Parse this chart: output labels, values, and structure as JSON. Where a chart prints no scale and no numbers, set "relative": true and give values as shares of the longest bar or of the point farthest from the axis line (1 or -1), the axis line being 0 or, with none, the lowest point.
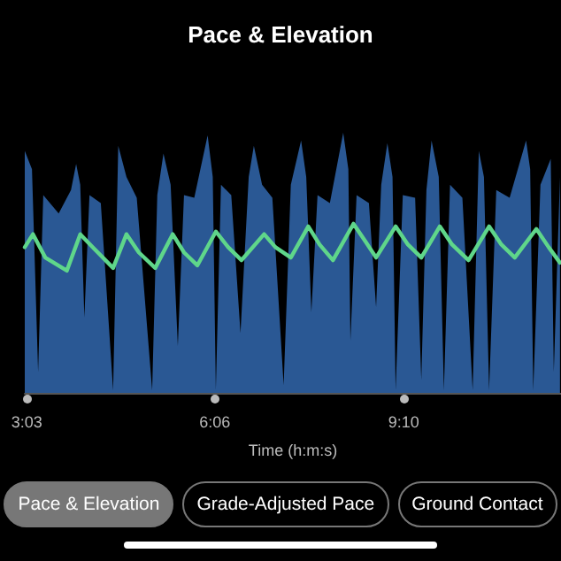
{
  "chart_data": {
    "type": "area",
    "title": "Pace & Elevation",
    "xlabel": "Time (h:m:s)",
    "relative": true,
    "grid": false,
    "xlim": [
      181,
      703
    ],
    "xticks": [
      {
        "value": 183,
        "label": "3:03"
      },
      {
        "value": 366,
        "label": "6:06"
      },
      {
        "value": 550,
        "label": "9:10"
      }
    ],
    "series": [
      {
        "color": "#2a5894",
        "x": [
          181,
          188,
          194,
          199,
          214,
          226,
          231,
          235,
          239,
          244,
          255,
          267,
          272,
          280,
          290,
          305,
          310,
          316,
          323,
          330,
          336,
          346,
          359,
          364,
          367,
          372,
          382,
          391,
          399,
          404,
          412,
          422,
          433,
          440,
          450,
          455,
          460,
          466,
          478,
          491,
          496,
          498,
          504,
          516,
          523,
          528,
          534,
          539,
          542,
          549,
          561,
          567,
          572,
          577,
          584,
          589,
          595,
          607,
          617,
          623,
          628,
          633,
          640,
          653,
          669,
          673,
          676,
          683,
          693,
          696,
          702
        ],
        "values": [
          0.93,
          0.86,
          0.08,
          0.76,
          0.69,
          0.78,
          0.88,
          0.8,
          0.29,
          0.76,
          0.73,
          0.01,
          0.95,
          0.83,
          0.75,
          0.01,
          0.76,
          0.92,
          0.8,
          0.18,
          0.76,
          0.75,
          0.99,
          0.83,
          0.01,
          0.8,
          0.76,
          0.23,
          0.83,
          0.95,
          0.8,
          0.75,
          0.03,
          0.8,
          0.97,
          0.83,
          0.31,
          0.76,
          0.73,
          1.0,
          0.86,
          0.2,
          0.76,
          0.73,
          0.33,
          0.8,
          0.96,
          0.83,
          0.01,
          0.76,
          0.75,
          0.05,
          0.78,
          0.97,
          0.83,
          0.01,
          0.8,
          0.75,
          0.01,
          0.93,
          0.83,
          0.01,
          0.78,
          0.75,
          0.97,
          0.86,
          0.01,
          0.8,
          0.9,
          0.08,
          0.83
        ]
      },
      {
        "type": "line",
        "color": "#5fd68a",
        "marker": "none",
        "x": [
          181,
          189,
          201,
          222,
          235,
          247,
          267,
          280,
          292,
          308,
          325,
          336,
          349,
          367,
          379,
          392,
          414,
          425,
          440,
          457,
          468,
          481,
          501,
          513,
          523,
          542,
          554,
          567,
          585,
          597,
          613,
          633,
          645,
          658,
          679,
          691,
          702
        ],
        "values": [
          0.56,
          0.61,
          0.52,
          0.47,
          0.61,
          0.56,
          0.48,
          0.61,
          0.54,
          0.48,
          0.61,
          0.54,
          0.49,
          0.62,
          0.56,
          0.51,
          0.61,
          0.56,
          0.52,
          0.64,
          0.57,
          0.51,
          0.65,
          0.58,
          0.52,
          0.64,
          0.57,
          0.52,
          0.64,
          0.57,
          0.51,
          0.64,
          0.57,
          0.52,
          0.63,
          0.56,
          0.5
        ]
      }
    ],
    "annotations": [
      "Pace & Elevation",
      "Grade-Adjusted Pace",
      "Ground Contact"
    ]
  }
}
